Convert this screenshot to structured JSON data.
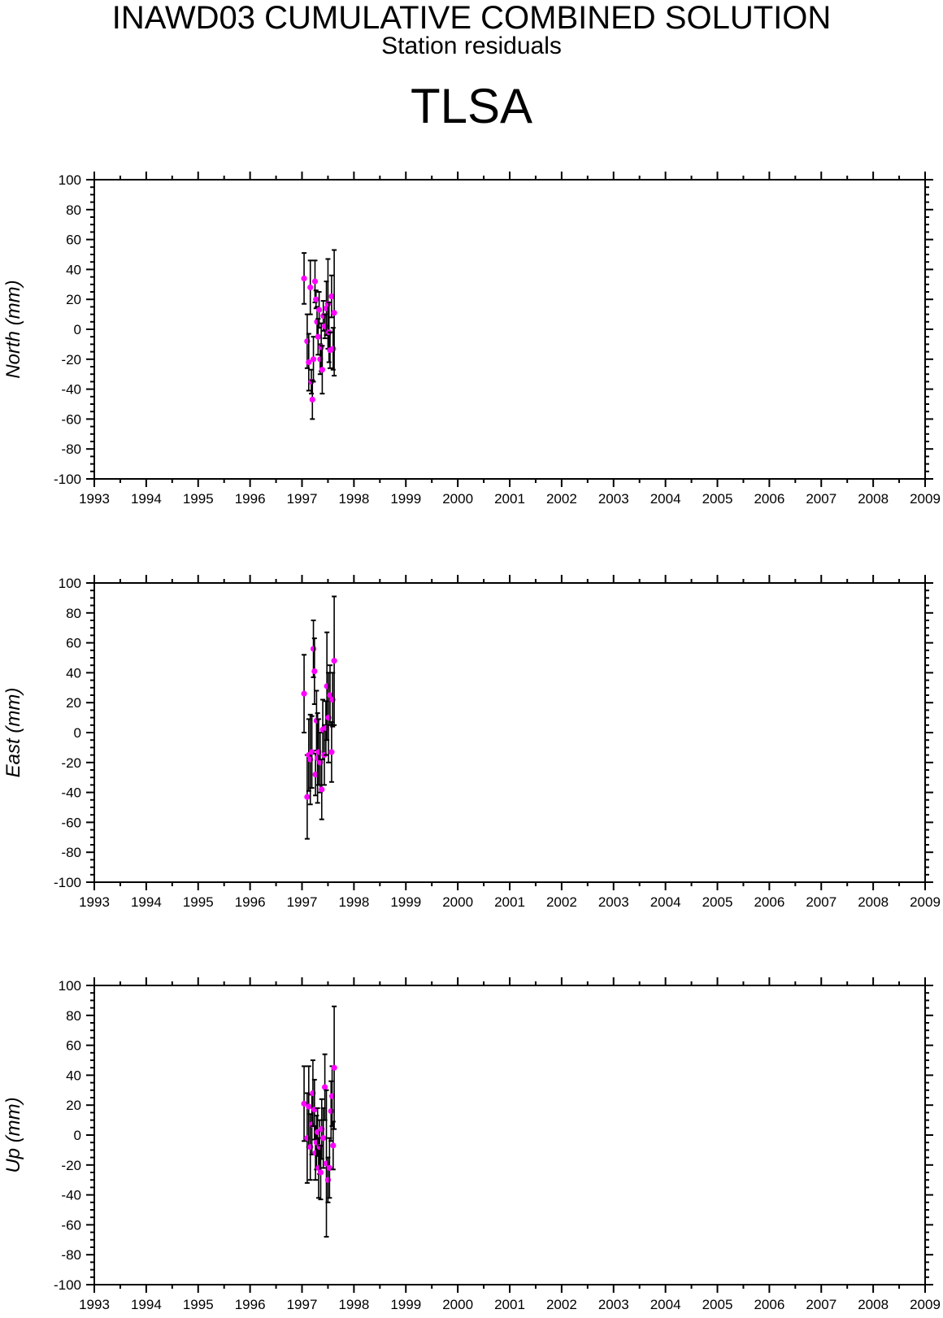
{
  "header": {
    "title": "INAWD03 CUMULATIVE COMBINED SOLUTION",
    "subtitle": "Station residuals",
    "station": "TLSA"
  },
  "colors": {
    "marker": "#ff00ff",
    "errorbar": "#000000",
    "axes": "#000000"
  },
  "chart_data": [
    {
      "type": "scatter",
      "ylabel": "North (mm)",
      "xlim": [
        1993,
        2009
      ],
      "ylim": [
        -100,
        100
      ],
      "xticks": [
        1993,
        1994,
        1995,
        1996,
        1997,
        1998,
        1999,
        2000,
        2001,
        2002,
        2003,
        2004,
        2005,
        2006,
        2007,
        2008,
        2009
      ],
      "yticks": [
        100,
        80,
        60,
        40,
        20,
        0,
        -20,
        -40,
        -60,
        -80,
        -100
      ],
      "series": [
        {
          "points": [
            {
              "x": 1997.04,
              "y": 34,
              "err": 17
            },
            {
              "x": 1997.1,
              "y": -8,
              "err": 18
            },
            {
              "x": 1997.13,
              "y": -22,
              "err": 19
            },
            {
              "x": 1997.16,
              "y": 28,
              "err": 18
            },
            {
              "x": 1997.18,
              "y": -35,
              "err": 8
            },
            {
              "x": 1997.2,
              "y": -47,
              "err": 13
            },
            {
              "x": 1997.22,
              "y": -20,
              "err": 15
            },
            {
              "x": 1997.25,
              "y": 32,
              "err": 14
            },
            {
              "x": 1997.27,
              "y": 20,
              "err": 6
            },
            {
              "x": 1997.29,
              "y": 5,
              "err": 10
            },
            {
              "x": 1997.31,
              "y": -5,
              "err": 12
            },
            {
              "x": 1997.33,
              "y": 13,
              "err": 12
            },
            {
              "x": 1997.35,
              "y": -20,
              "err": 10
            },
            {
              "x": 1997.37,
              "y": -12,
              "err": 16
            },
            {
              "x": 1997.39,
              "y": -27,
              "err": 16
            },
            {
              "x": 1997.41,
              "y": 9,
              "err": 10
            },
            {
              "x": 1997.44,
              "y": 2,
              "err": 8
            },
            {
              "x": 1997.47,
              "y": 14,
              "err": 18
            },
            {
              "x": 1997.5,
              "y": 17,
              "err": 30
            },
            {
              "x": 1997.52,
              "y": -2,
              "err": 20
            },
            {
              "x": 1997.54,
              "y": -14,
              "err": 12
            },
            {
              "x": 1997.57,
              "y": 22,
              "err": 14
            },
            {
              "x": 1997.6,
              "y": -13,
              "err": 14
            },
            {
              "x": 1997.62,
              "y": 11,
              "err": 42
            }
          ]
        }
      ]
    },
    {
      "type": "scatter",
      "ylabel": "East (mm)",
      "xlim": [
        1993,
        2009
      ],
      "ylim": [
        -100,
        100
      ],
      "xticks": [
        1993,
        1994,
        1995,
        1996,
        1997,
        1998,
        1999,
        2000,
        2001,
        2002,
        2003,
        2004,
        2005,
        2006,
        2007,
        2008,
        2009
      ],
      "yticks": [
        100,
        80,
        60,
        40,
        20,
        0,
        -20,
        -40,
        -60,
        -80,
        -100
      ],
      "series": [
        {
          "points": [
            {
              "x": 1997.04,
              "y": 26,
              "err": 26
            },
            {
              "x": 1997.1,
              "y": -43,
              "err": 28
            },
            {
              "x": 1997.13,
              "y": -15,
              "err": 24
            },
            {
              "x": 1997.16,
              "y": -18,
              "err": 30
            },
            {
              "x": 1997.19,
              "y": -13,
              "err": 24
            },
            {
              "x": 1997.22,
              "y": 56,
              "err": 19
            },
            {
              "x": 1997.24,
              "y": 41,
              "err": 22
            },
            {
              "x": 1997.26,
              "y": -28,
              "err": 14
            },
            {
              "x": 1997.28,
              "y": 8,
              "err": 20
            },
            {
              "x": 1997.3,
              "y": -17,
              "err": 30
            },
            {
              "x": 1997.32,
              "y": -13,
              "err": 22
            },
            {
              "x": 1997.35,
              "y": -20,
              "err": 20
            },
            {
              "x": 1997.38,
              "y": -38,
              "err": 20
            },
            {
              "x": 1997.4,
              "y": 2,
              "err": 20
            },
            {
              "x": 1997.43,
              "y": -15,
              "err": 20
            },
            {
              "x": 1997.46,
              "y": 3,
              "err": 18
            },
            {
              "x": 1997.48,
              "y": 31,
              "err": 36
            },
            {
              "x": 1997.51,
              "y": 10,
              "err": 30
            },
            {
              "x": 1997.54,
              "y": 25,
              "err": 20
            },
            {
              "x": 1997.57,
              "y": -13,
              "err": 20
            },
            {
              "x": 1997.59,
              "y": 22,
              "err": 18
            },
            {
              "x": 1997.62,
              "y": 48,
              "err": 43
            }
          ]
        }
      ]
    },
    {
      "type": "scatter",
      "ylabel": "Up (mm)",
      "xlim": [
        1993,
        2009
      ],
      "ylim": [
        -100,
        100
      ],
      "xticks": [
        1993,
        1994,
        1995,
        1996,
        1997,
        1998,
        1999,
        2000,
        2001,
        2002,
        2003,
        2004,
        2005,
        2006,
        2007,
        2008,
        2009
      ],
      "yticks": [
        100,
        80,
        60,
        40,
        20,
        0,
        -20,
        -40,
        -60,
        -80,
        -100
      ],
      "series": [
        {
          "points": [
            {
              "x": 1997.04,
              "y": 21,
              "err": 25
            },
            {
              "x": 1997.1,
              "y": -2,
              "err": 30
            },
            {
              "x": 1997.13,
              "y": 19,
              "err": 27
            },
            {
              "x": 1997.16,
              "y": -8,
              "err": 22
            },
            {
              "x": 1997.19,
              "y": 7,
              "err": 20
            },
            {
              "x": 1997.21,
              "y": 28,
              "err": 22
            },
            {
              "x": 1997.24,
              "y": 17,
              "err": 20
            },
            {
              "x": 1997.26,
              "y": -12,
              "err": 18
            },
            {
              "x": 1997.28,
              "y": -5,
              "err": 18
            },
            {
              "x": 1997.3,
              "y": 2,
              "err": 16
            },
            {
              "x": 1997.32,
              "y": -22,
              "err": 20
            },
            {
              "x": 1997.34,
              "y": -8,
              "err": 18
            },
            {
              "x": 1997.36,
              "y": -25,
              "err": 18
            },
            {
              "x": 1997.38,
              "y": 4,
              "err": 20
            },
            {
              "x": 1997.41,
              "y": -2,
              "err": 20
            },
            {
              "x": 1997.44,
              "y": 32,
              "err": 22
            },
            {
              "x": 1997.47,
              "y": -19,
              "err": 49
            },
            {
              "x": 1997.5,
              "y": -30,
              "err": 15
            },
            {
              "x": 1997.53,
              "y": -22,
              "err": 20
            },
            {
              "x": 1997.56,
              "y": 16,
              "err": 20
            },
            {
              "x": 1997.58,
              "y": 26,
              "err": 20
            },
            {
              "x": 1997.6,
              "y": -7,
              "err": 16
            },
            {
              "x": 1997.62,
              "y": 45,
              "err": 41
            }
          ]
        }
      ]
    }
  ]
}
